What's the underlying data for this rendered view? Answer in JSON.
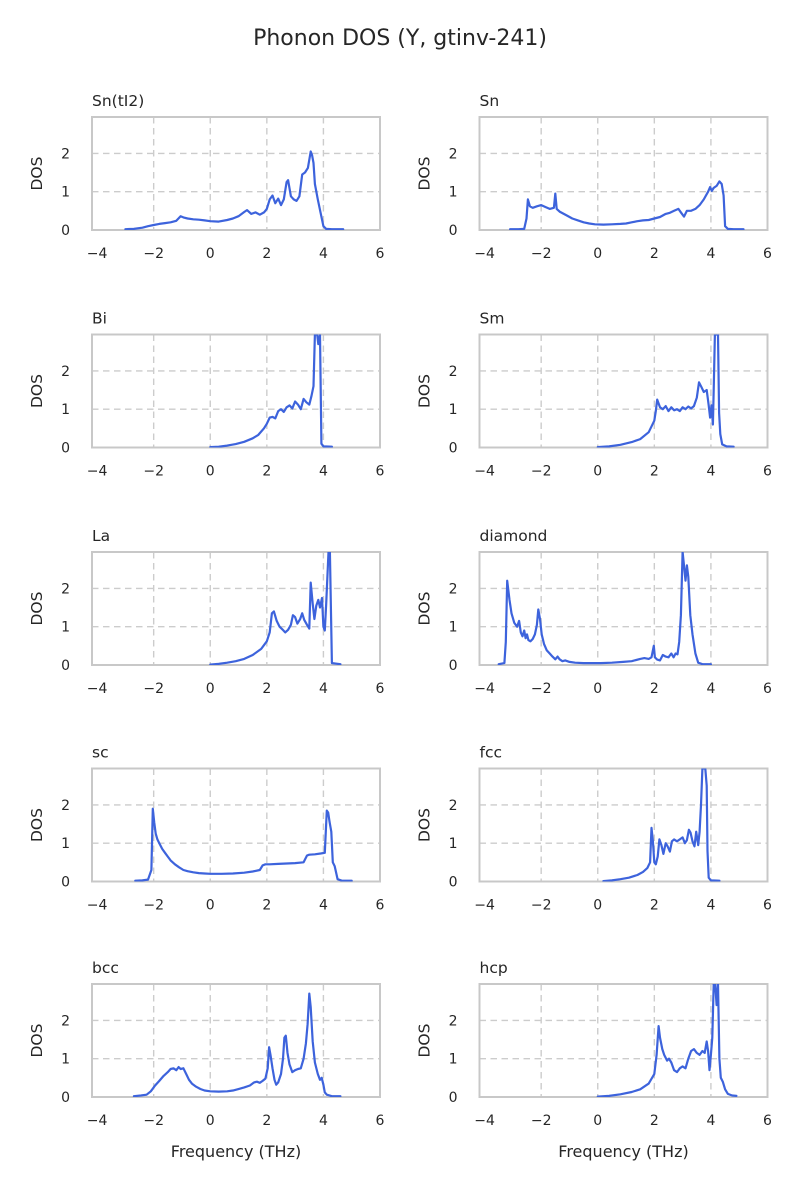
{
  "title": "Phonon DOS (Y, gtinv-241)",
  "colors": {
    "line": "#3d63dc",
    "grid": "#cccccc",
    "spine": "#c8c8c8",
    "text": "#262626",
    "background": "#ffffff"
  },
  "chart_data": {
    "type": "line",
    "suptitle": "Phonon DOS (Y, gtinv-241)",
    "xlabel": "Frequency (THz)",
    "ylabel": "DOS",
    "layout": "5x2",
    "grid": true,
    "grid_style": "dashed",
    "xlim": [
      -4.18,
      6.0
    ],
    "ylim": [
      0,
      2.95
    ],
    "xticks": [
      -4,
      -2,
      0,
      2,
      4,
      6
    ],
    "yticks": [
      0,
      1,
      2
    ],
    "xgrid": [
      -2,
      0,
      2,
      4
    ],
    "ygrid": [
      1,
      2
    ],
    "panels": [
      {
        "title": "Sn(tI2)",
        "x": [
          -3.0,
          -2.7,
          -2.4,
          -2.2,
          -2.0,
          -1.8,
          -1.6,
          -1.4,
          -1.2,
          -1.05,
          -0.95,
          -0.8,
          -0.6,
          -0.4,
          -0.2,
          0.0,
          0.3,
          0.6,
          0.8,
          1.0,
          1.2,
          1.3,
          1.45,
          1.6,
          1.75,
          1.9,
          2.0,
          2.1,
          2.2,
          2.3,
          2.4,
          2.5,
          2.6,
          2.7,
          2.75,
          2.85,
          2.95,
          3.05,
          3.15,
          3.25,
          3.35,
          3.45,
          3.55,
          3.6,
          3.65,
          3.7,
          3.8,
          3.9,
          4.0,
          4.1,
          4.3,
          4.7
        ],
        "y": [
          0.02,
          0.03,
          0.06,
          0.1,
          0.13,
          0.16,
          0.18,
          0.2,
          0.24,
          0.36,
          0.33,
          0.3,
          0.28,
          0.27,
          0.25,
          0.23,
          0.22,
          0.26,
          0.3,
          0.36,
          0.47,
          0.52,
          0.42,
          0.46,
          0.4,
          0.46,
          0.55,
          0.8,
          0.9,
          0.7,
          0.82,
          0.65,
          0.8,
          1.25,
          1.3,
          0.88,
          0.8,
          0.76,
          0.88,
          1.45,
          1.5,
          1.62,
          2.05,
          1.95,
          1.75,
          1.2,
          0.8,
          0.45,
          0.1,
          0.03,
          0.02,
          0.02
        ]
      },
      {
        "title": "Sn",
        "x": [
          -3.1,
          -2.8,
          -2.6,
          -2.52,
          -2.47,
          -2.4,
          -2.3,
          -2.15,
          -2.0,
          -1.85,
          -1.7,
          -1.55,
          -1.5,
          -1.45,
          -1.35,
          -1.25,
          -1.1,
          -0.9,
          -0.7,
          -0.5,
          -0.3,
          -0.1,
          0.2,
          0.5,
          0.8,
          1.0,
          1.2,
          1.4,
          1.6,
          1.8,
          2.0,
          2.2,
          2.4,
          2.55,
          2.7,
          2.85,
          2.95,
          3.05,
          3.15,
          3.3,
          3.45,
          3.6,
          3.75,
          3.9,
          3.97,
          4.03,
          4.1,
          4.2,
          4.3,
          4.38,
          4.45,
          4.5,
          4.6,
          4.8,
          5.15
        ],
        "y": [
          0.02,
          0.02,
          0.03,
          0.3,
          0.8,
          0.62,
          0.58,
          0.62,
          0.65,
          0.6,
          0.55,
          0.58,
          0.95,
          0.55,
          0.48,
          0.44,
          0.38,
          0.3,
          0.25,
          0.2,
          0.17,
          0.15,
          0.14,
          0.15,
          0.16,
          0.17,
          0.2,
          0.23,
          0.25,
          0.26,
          0.3,
          0.34,
          0.42,
          0.45,
          0.5,
          0.55,
          0.45,
          0.35,
          0.5,
          0.5,
          0.55,
          0.65,
          0.8,
          1.0,
          1.12,
          1.02,
          1.1,
          1.15,
          1.27,
          1.2,
          0.9,
          0.1,
          0.03,
          0.02,
          0.02
        ]
      },
      {
        "title": "Bi",
        "x": [
          0.0,
          0.3,
          0.6,
          0.9,
          1.2,
          1.5,
          1.7,
          1.9,
          2.0,
          2.1,
          2.2,
          2.3,
          2.4,
          2.5,
          2.6,
          2.7,
          2.8,
          2.9,
          3.0,
          3.1,
          3.2,
          3.3,
          3.4,
          3.5,
          3.58,
          3.65,
          3.7,
          3.78,
          3.82,
          3.88,
          3.93,
          4.0,
          4.3
        ],
        "y": [
          0.01,
          0.02,
          0.05,
          0.09,
          0.15,
          0.24,
          0.33,
          0.5,
          0.62,
          0.78,
          0.8,
          0.76,
          0.95,
          1.0,
          0.93,
          1.05,
          1.1,
          1.02,
          1.2,
          1.12,
          1.0,
          1.27,
          1.18,
          1.12,
          1.35,
          1.6,
          2.95,
          2.95,
          2.7,
          2.95,
          0.1,
          0.03,
          0.02
        ]
      },
      {
        "title": "Sm",
        "x": [
          0.0,
          0.4,
          0.8,
          1.2,
          1.5,
          1.8,
          2.0,
          2.05,
          2.1,
          2.2,
          2.3,
          2.4,
          2.5,
          2.6,
          2.7,
          2.8,
          2.9,
          3.0,
          3.1,
          3.2,
          3.3,
          3.4,
          3.5,
          3.58,
          3.65,
          3.75,
          3.85,
          3.92,
          3.97,
          4.02,
          4.07,
          4.1,
          4.14,
          4.25,
          4.29,
          4.33,
          4.4,
          4.55,
          4.8
        ],
        "y": [
          0.01,
          0.03,
          0.07,
          0.14,
          0.22,
          0.4,
          0.7,
          0.95,
          1.25,
          1.05,
          1.0,
          1.08,
          0.95,
          1.05,
          0.97,
          1.0,
          0.95,
          1.05,
          1.0,
          1.07,
          1.02,
          1.08,
          1.3,
          1.7,
          1.6,
          1.45,
          1.5,
          1.1,
          0.78,
          1.1,
          0.6,
          1.5,
          2.95,
          2.95,
          0.9,
          0.35,
          0.08,
          0.03,
          0.02
        ]
      },
      {
        "title": "La",
        "x": [
          0.0,
          0.3,
          0.6,
          0.9,
          1.2,
          1.5,
          1.8,
          2.0,
          2.1,
          2.18,
          2.25,
          2.35,
          2.45,
          2.55,
          2.65,
          2.75,
          2.85,
          2.92,
          3.0,
          3.08,
          3.18,
          3.25,
          3.32,
          3.42,
          3.5,
          3.55,
          3.62,
          3.68,
          3.75,
          3.82,
          3.88,
          3.95,
          4.0,
          4.05,
          4.1,
          4.18,
          4.23,
          4.3,
          4.6
        ],
        "y": [
          0.01,
          0.03,
          0.06,
          0.1,
          0.16,
          0.26,
          0.42,
          0.62,
          0.85,
          1.35,
          1.4,
          1.15,
          1.0,
          0.93,
          0.85,
          0.92,
          1.05,
          1.3,
          1.25,
          1.08,
          1.2,
          1.35,
          1.18,
          1.05,
          0.95,
          2.15,
          1.6,
          1.2,
          1.55,
          1.7,
          1.5,
          1.75,
          1.0,
          0.9,
          1.6,
          2.95,
          2.95,
          0.05,
          0.02
        ]
      },
      {
        "title": "diamond",
        "x": [
          -3.5,
          -3.3,
          -3.25,
          -3.2,
          -3.12,
          -3.05,
          -2.95,
          -2.85,
          -2.78,
          -2.72,
          -2.66,
          -2.6,
          -2.55,
          -2.5,
          -2.45,
          -2.38,
          -2.3,
          -2.22,
          -2.15,
          -2.1,
          -2.04,
          -1.98,
          -1.9,
          -1.8,
          -1.7,
          -1.6,
          -1.5,
          -1.42,
          -1.35,
          -1.25,
          -1.15,
          -1.0,
          -0.8,
          -0.5,
          -0.2,
          0.1,
          0.5,
          0.9,
          1.2,
          1.5,
          1.65,
          1.8,
          1.9,
          1.98,
          2.02,
          2.1,
          2.2,
          2.3,
          2.4,
          2.5,
          2.6,
          2.68,
          2.75,
          2.82,
          2.88,
          2.94,
          3.0,
          3.05,
          3.1,
          3.15,
          3.2,
          3.27,
          3.35,
          3.45,
          3.55,
          3.7,
          4.0
        ],
        "y": [
          0.02,
          0.05,
          0.6,
          2.2,
          1.7,
          1.35,
          1.1,
          1.0,
          1.15,
          0.85,
          0.75,
          0.9,
          0.7,
          0.8,
          0.65,
          0.62,
          0.68,
          0.8,
          1.05,
          1.45,
          1.2,
          0.8,
          0.55,
          0.38,
          0.3,
          0.22,
          0.15,
          0.22,
          0.15,
          0.1,
          0.12,
          0.08,
          0.06,
          0.05,
          0.05,
          0.05,
          0.06,
          0.08,
          0.1,
          0.16,
          0.18,
          0.16,
          0.2,
          0.5,
          0.2,
          0.14,
          0.12,
          0.26,
          0.22,
          0.2,
          0.3,
          0.2,
          0.3,
          0.28,
          0.6,
          1.3,
          2.95,
          2.6,
          2.2,
          2.6,
          2.3,
          1.3,
          0.8,
          0.3,
          0.06,
          0.02,
          0.02
        ]
      },
      {
        "title": "sc",
        "x": [
          -2.65,
          -2.4,
          -2.2,
          -2.08,
          -2.03,
          -1.98,
          -1.93,
          -1.87,
          -1.8,
          -1.7,
          -1.6,
          -1.5,
          -1.4,
          -1.25,
          -1.1,
          -0.95,
          -0.8,
          -0.6,
          -0.4,
          -0.2,
          0.0,
          0.4,
          0.8,
          1.2,
          1.5,
          1.75,
          1.85,
          1.95,
          2.1,
          2.4,
          2.7,
          3.0,
          3.3,
          3.42,
          3.5,
          3.7,
          3.9,
          4.05,
          4.12,
          4.17,
          4.22,
          4.28,
          4.33,
          4.4,
          4.5,
          4.65,
          5.0
        ],
        "y": [
          0.02,
          0.03,
          0.05,
          0.3,
          1.9,
          1.55,
          1.25,
          1.1,
          1.0,
          0.85,
          0.75,
          0.65,
          0.55,
          0.45,
          0.37,
          0.3,
          0.27,
          0.24,
          0.22,
          0.21,
          0.2,
          0.2,
          0.21,
          0.23,
          0.26,
          0.3,
          0.42,
          0.45,
          0.45,
          0.46,
          0.47,
          0.48,
          0.5,
          0.68,
          0.7,
          0.71,
          0.73,
          0.75,
          1.85,
          1.8,
          1.55,
          1.3,
          0.5,
          0.4,
          0.06,
          0.02,
          0.02
        ]
      },
      {
        "title": "fcc",
        "x": [
          0.2,
          0.5,
          0.8,
          1.1,
          1.4,
          1.6,
          1.75,
          1.85,
          1.9,
          1.95,
          2.0,
          2.05,
          2.12,
          2.18,
          2.25,
          2.32,
          2.4,
          2.47,
          2.55,
          2.62,
          2.7,
          2.8,
          2.9,
          3.0,
          3.08,
          3.15,
          3.22,
          3.28,
          3.35,
          3.42,
          3.48,
          3.55,
          3.6,
          3.65,
          3.7,
          3.8,
          3.85,
          3.88,
          3.92,
          4.0,
          4.3
        ],
        "y": [
          0.01,
          0.03,
          0.06,
          0.1,
          0.17,
          0.25,
          0.35,
          0.5,
          1.4,
          1.05,
          0.5,
          0.45,
          0.65,
          1.1,
          0.95,
          0.72,
          1.0,
          0.92,
          0.78,
          1.05,
          1.1,
          1.05,
          1.1,
          1.15,
          1.0,
          1.08,
          1.35,
          1.28,
          1.05,
          0.92,
          1.3,
          0.95,
          1.3,
          2.0,
          2.95,
          2.95,
          2.5,
          0.8,
          0.1,
          0.03,
          0.02
        ]
      },
      {
        "title": "bcc",
        "x": [
          -2.7,
          -2.45,
          -2.25,
          -2.1,
          -1.95,
          -1.8,
          -1.65,
          -1.5,
          -1.4,
          -1.3,
          -1.2,
          -1.12,
          -1.05,
          -0.95,
          -0.85,
          -0.75,
          -0.65,
          -0.5,
          -0.35,
          -0.2,
          0.0,
          0.3,
          0.6,
          0.8,
          1.0,
          1.2,
          1.4,
          1.55,
          1.65,
          1.75,
          1.85,
          1.95,
          2.03,
          2.08,
          2.13,
          2.2,
          2.27,
          2.33,
          2.4,
          2.5,
          2.57,
          2.62,
          2.67,
          2.73,
          2.8,
          2.9,
          3.0,
          3.1,
          3.2,
          3.3,
          3.38,
          3.44,
          3.5,
          3.55,
          3.62,
          3.7,
          3.8,
          3.88,
          3.94,
          4.0,
          4.05,
          4.12,
          4.3,
          4.6
        ],
        "y": [
          0.02,
          0.04,
          0.06,
          0.15,
          0.3,
          0.42,
          0.55,
          0.65,
          0.73,
          0.75,
          0.7,
          0.78,
          0.73,
          0.75,
          0.6,
          0.45,
          0.35,
          0.27,
          0.21,
          0.17,
          0.15,
          0.14,
          0.15,
          0.17,
          0.21,
          0.25,
          0.3,
          0.38,
          0.4,
          0.37,
          0.42,
          0.48,
          0.75,
          1.3,
          1.1,
          0.75,
          0.45,
          0.32,
          0.38,
          0.6,
          1.0,
          1.55,
          1.6,
          1.15,
          0.85,
          0.65,
          0.7,
          0.73,
          0.75,
          1.0,
          1.4,
          1.9,
          2.7,
          2.35,
          1.45,
          0.9,
          0.6,
          0.45,
          0.5,
          0.32,
          0.12,
          0.06,
          0.02,
          0.02
        ]
      },
      {
        "title": "hcp",
        "x": [
          0.0,
          0.4,
          0.8,
          1.2,
          1.5,
          1.8,
          2.0,
          2.08,
          2.15,
          2.2,
          2.28,
          2.35,
          2.45,
          2.52,
          2.6,
          2.7,
          2.8,
          2.9,
          3.0,
          3.1,
          3.2,
          3.3,
          3.4,
          3.5,
          3.6,
          3.7,
          3.78,
          3.85,
          3.9,
          3.95,
          4.0,
          4.05,
          4.1,
          4.15,
          4.2,
          4.25,
          4.3,
          4.35,
          4.42,
          4.5,
          4.6,
          4.75,
          4.9
        ],
        "y": [
          0.01,
          0.03,
          0.07,
          0.13,
          0.2,
          0.35,
          0.6,
          1.1,
          1.85,
          1.55,
          1.25,
          1.1,
          0.95,
          1.0,
          0.9,
          0.7,
          0.65,
          0.75,
          0.8,
          0.75,
          1.0,
          1.2,
          1.25,
          1.15,
          1.1,
          1.2,
          1.15,
          1.45,
          1.2,
          0.7,
          1.1,
          1.55,
          2.95,
          2.95,
          2.4,
          2.95,
          1.0,
          0.5,
          0.4,
          0.2,
          0.08,
          0.04,
          0.03
        ]
      }
    ]
  }
}
